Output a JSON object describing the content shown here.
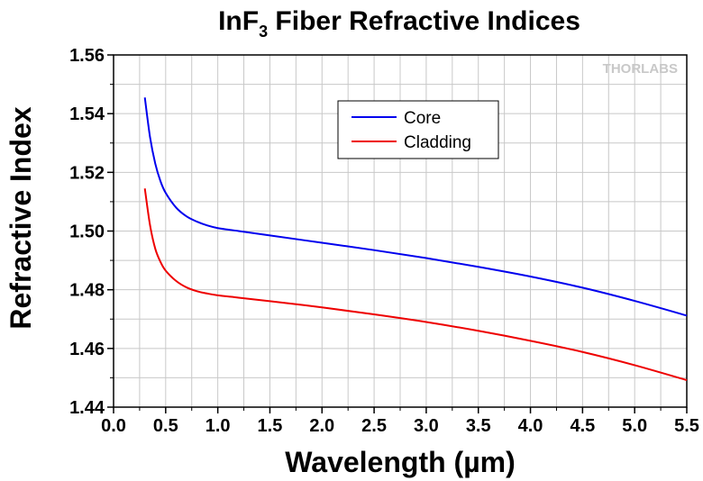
{
  "chart_data": {
    "type": "line",
    "title_main": "InF",
    "title_sub": "3",
    "title_rest": " Fiber Refractive Indices",
    "xlabel": "Wavelength (µm)",
    "ylabel": "Refractive Index",
    "xlim": [
      0.0,
      5.5
    ],
    "ylim": [
      1.44,
      1.56
    ],
    "x_ticks": [
      "0.0",
      "0.5",
      "1.0",
      "1.5",
      "2.0",
      "2.5",
      "3.0",
      "3.5",
      "4.0",
      "4.5",
      "5.0",
      "5.5"
    ],
    "x_tick_values": [
      0.0,
      0.5,
      1.0,
      1.5,
      2.0,
      2.5,
      3.0,
      3.5,
      4.0,
      4.5,
      5.0,
      5.5
    ],
    "y_ticks": [
      "1.44",
      "1.46",
      "1.48",
      "1.50",
      "1.52",
      "1.54",
      "1.56"
    ],
    "y_tick_values": [
      1.44,
      1.46,
      1.48,
      1.5,
      1.52,
      1.54,
      1.56
    ],
    "grid": true,
    "legend_position": "top-center",
    "logo_text": "THORLABS",
    "series": [
      {
        "name": "Core",
        "color": "#0000ee",
        "x": [
          0.3,
          0.35,
          0.4,
          0.45,
          0.5,
          0.6,
          0.7,
          0.8,
          0.9,
          1.0,
          1.2,
          1.5,
          2.0,
          2.5,
          3.0,
          3.5,
          4.0,
          4.5,
          5.0,
          5.5
        ],
        "y": [
          1.5455,
          1.532,
          1.523,
          1.517,
          1.513,
          1.508,
          1.505,
          1.5032,
          1.5019,
          1.501,
          1.5,
          1.4985,
          1.496,
          1.4935,
          1.4908,
          1.4878,
          1.4845,
          1.4807,
          1.4762,
          1.4712
        ]
      },
      {
        "name": "Cladding",
        "color": "#ee0000",
        "x": [
          0.3,
          0.35,
          0.4,
          0.45,
          0.5,
          0.6,
          0.7,
          0.8,
          0.9,
          1.0,
          1.2,
          1.5,
          2.0,
          2.5,
          3.0,
          3.5,
          4.0,
          4.5,
          5.0,
          5.5
        ],
        "y": [
          1.5145,
          1.502,
          1.494,
          1.4895,
          1.4865,
          1.483,
          1.4808,
          1.4795,
          1.4787,
          1.4781,
          1.4773,
          1.4761,
          1.474,
          1.4716,
          1.469,
          1.466,
          1.4626,
          1.4588,
          1.4543,
          1.4492
        ]
      }
    ]
  }
}
